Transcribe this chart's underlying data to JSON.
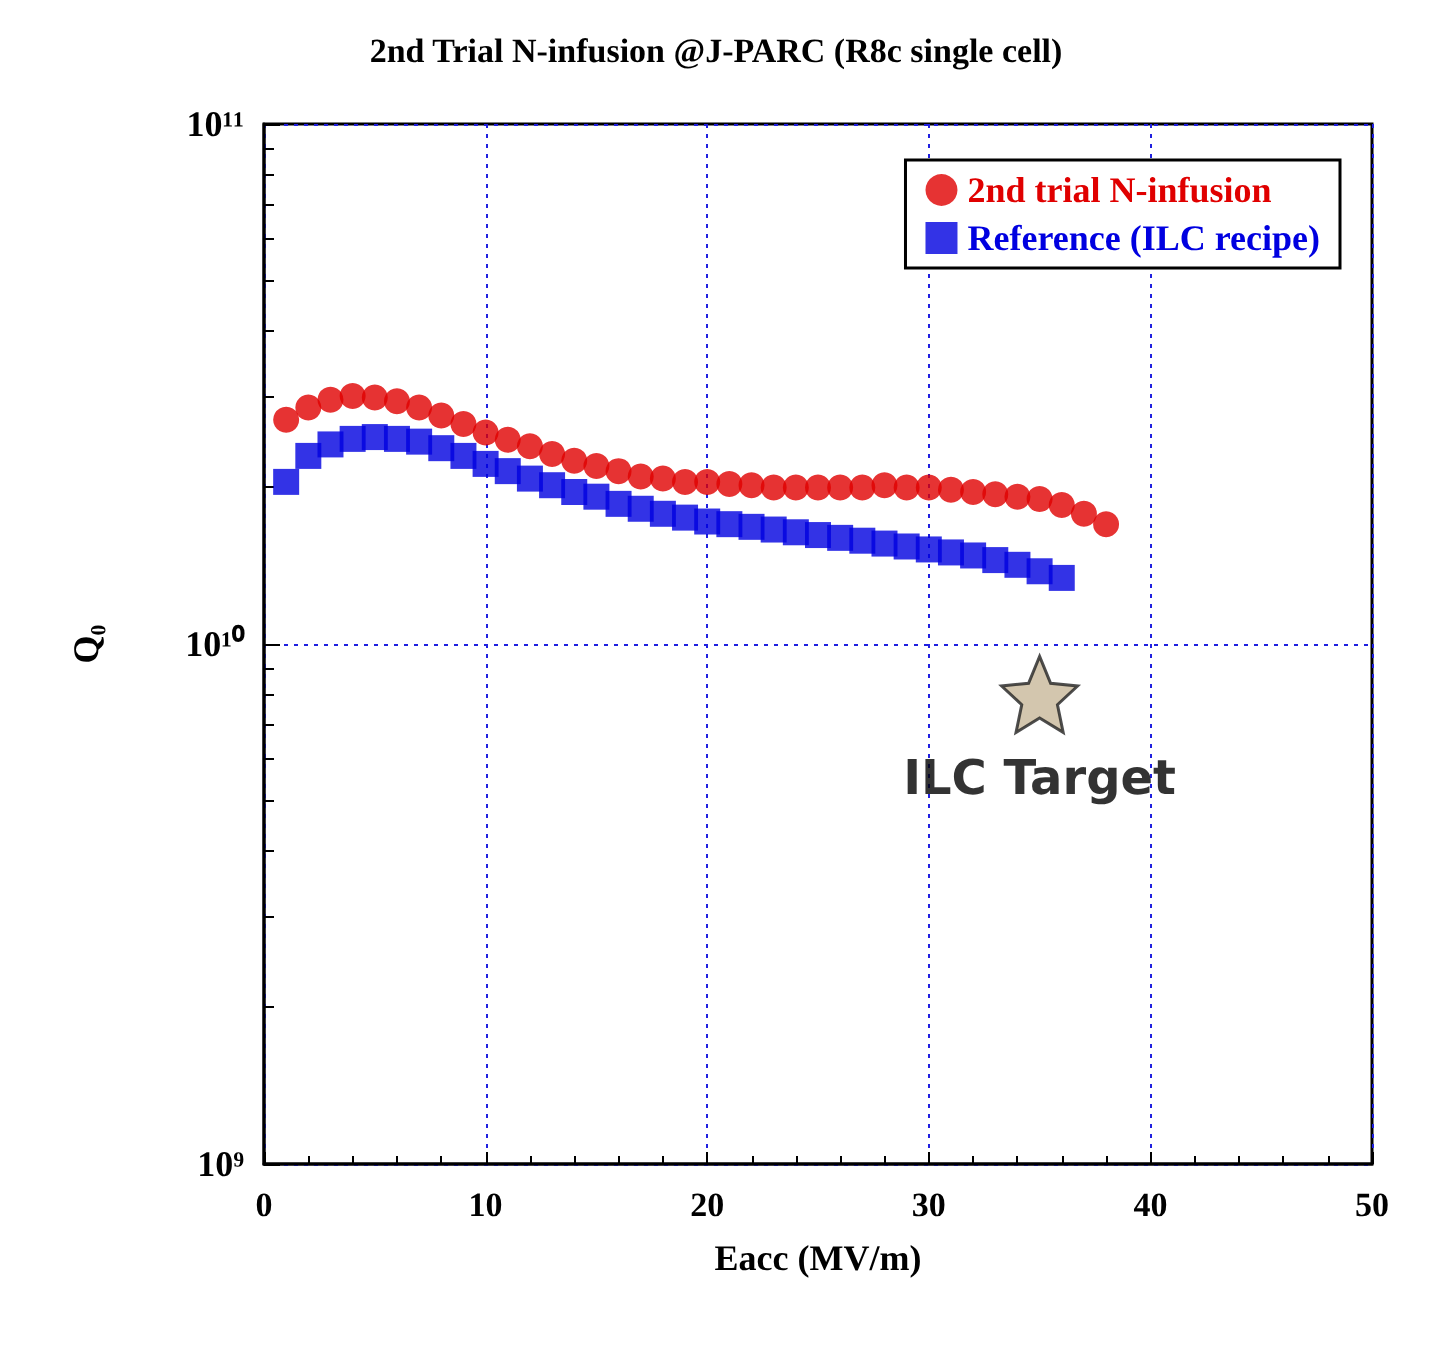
{
  "chart_data": {
    "type": "scatter",
    "title": "2nd Trial N-infusion @J-PARC (R8c single cell)",
    "xlabel": "Eacc (MV/m)",
    "ylabel": "Q₀",
    "xlim": [
      0,
      50
    ],
    "xticks": [
      0,
      10,
      20,
      30,
      40,
      50
    ],
    "ylim": [
      1000000000.0,
      100000000000.0
    ],
    "yticks": [
      {
        "value": 1000000000.0,
        "label": "10⁹"
      },
      {
        "value": 10000000000.0,
        "label": "10¹⁰"
      },
      {
        "value": 100000000000.0,
        "label": "10¹¹"
      }
    ],
    "log": "y",
    "grid": true,
    "legend": "top right",
    "series": [
      {
        "name": "2nd trial N-infusion",
        "color": "#e00000",
        "marker": "circle",
        "x": [
          1,
          2,
          3,
          4,
          5,
          6,
          7,
          8,
          9,
          10,
          11,
          12,
          13,
          14,
          15,
          16,
          17,
          18,
          19,
          20,
          21,
          22,
          23,
          24,
          25,
          26,
          27,
          28,
          29,
          30,
          31,
          32,
          33,
          34,
          35,
          36,
          37,
          38
        ],
        "values": [
          27000000000.0,
          28500000000.0,
          29500000000.0,
          30000000000.0,
          29800000000.0,
          29300000000.0,
          28500000000.0,
          27500000000.0,
          26500000000.0,
          25500000000.0,
          24700000000.0,
          24000000000.0,
          23200000000.0,
          22500000000.0,
          22000000000.0,
          21500000000.0,
          21000000000.0,
          20800000000.0,
          20500000000.0,
          20500000000.0,
          20300000000.0,
          20200000000.0,
          20000000000.0,
          20000000000.0,
          20000000000.0,
          20000000000.0,
          20000000000.0,
          20200000000.0,
          20000000000.0,
          20000000000.0,
          19800000000.0,
          19600000000.0,
          19400000000.0,
          19200000000.0,
          19000000000.0,
          18500000000.0,
          17800000000.0,
          17000000000.0
        ]
      },
      {
        "name": "Reference (ILC recipe)",
        "color": "#0000e0",
        "marker": "square",
        "x": [
          1,
          2,
          3,
          4,
          5,
          6,
          7,
          8,
          9,
          10,
          11,
          12,
          13,
          14,
          15,
          16,
          17,
          18,
          19,
          20,
          21,
          22,
          23,
          24,
          25,
          26,
          27,
          28,
          29,
          30,
          31,
          32,
          33,
          34,
          35,
          36
        ],
        "values": [
          20500000000.0,
          23000000000.0,
          24200000000.0,
          24800000000.0,
          25000000000.0,
          24800000000.0,
          24500000000.0,
          23800000000.0,
          23000000000.0,
          22200000000.0,
          21500000000.0,
          20800000000.0,
          20200000000.0,
          19600000000.0,
          19200000000.0,
          18600000000.0,
          18200000000.0,
          17800000000.0,
          17500000000.0,
          17200000000.0,
          17000000000.0,
          16800000000.0,
          16600000000.0,
          16400000000.0,
          16200000000.0,
          16000000000.0,
          15800000000.0,
          15600000000.0,
          15400000000.0,
          15200000000.0,
          15000000000.0,
          14800000000.0,
          14500000000.0,
          14200000000.0,
          13800000000.0,
          13400000000.0
        ]
      }
    ],
    "annotations": [
      {
        "text": "ILC Target",
        "x": 35,
        "y": 8000000000.0
      }
    ]
  }
}
